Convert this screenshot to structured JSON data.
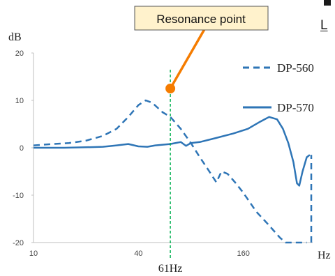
{
  "chart_data": {
    "type": "line",
    "ylabel": "dB",
    "xlabel": "Hz",
    "ylim": [
      -20,
      20
    ],
    "xlim": [
      10,
      400
    ],
    "x_scale": "log",
    "y_ticks": [
      "20",
      "10",
      "0",
      "-10",
      "-20"
    ],
    "x_ticks": [
      "10",
      "40",
      "160"
    ],
    "legend": "right",
    "series": [
      {
        "name": "DP-560",
        "style": "dashed",
        "color": "#2e75b6",
        "points": [
          [
            10,
            0.5
          ],
          [
            13,
            0.8
          ],
          [
            16,
            1.0
          ],
          [
            20,
            1.5
          ],
          [
            25,
            2.5
          ],
          [
            30,
            4.0
          ],
          [
            35,
            6.5
          ],
          [
            40,
            9.0
          ],
          [
            44,
            10.0
          ],
          [
            48,
            9.5
          ],
          [
            55,
            7.5
          ],
          [
            61,
            6.5
          ],
          [
            70,
            4.0
          ],
          [
            80,
            1.0
          ],
          [
            90,
            -2.0
          ],
          [
            100,
            -4.5
          ],
          [
            112,
            -7.3
          ],
          [
            120,
            -5.0
          ],
          [
            130,
            -5.5
          ],
          [
            145,
            -7.5
          ],
          [
            160,
            -9.5
          ],
          [
            190,
            -13.5
          ],
          [
            220,
            -16.0
          ],
          [
            260,
            -19.0
          ],
          [
            280,
            -20.0
          ],
          [
            320,
            -20.0
          ],
          [
            370,
            -20.0
          ]
        ]
      },
      {
        "name": "DP-570",
        "style": "solid",
        "color": "#2e75b6",
        "points": [
          [
            10,
            0.0
          ],
          [
            15,
            0.0
          ],
          [
            20,
            0.1
          ],
          [
            25,
            0.2
          ],
          [
            30,
            0.5
          ],
          [
            35,
            0.8
          ],
          [
            40,
            0.3
          ],
          [
            45,
            0.2
          ],
          [
            50,
            0.5
          ],
          [
            61,
            0.8
          ],
          [
            70,
            1.2
          ],
          [
            75,
            0.4
          ],
          [
            80,
            1.0
          ],
          [
            90,
            1.2
          ],
          [
            110,
            2.0
          ],
          [
            140,
            3.0
          ],
          [
            170,
            4.0
          ],
          [
            200,
            5.5
          ],
          [
            225,
            6.5
          ],
          [
            250,
            6.0
          ],
          [
            270,
            4.0
          ],
          [
            290,
            1.0
          ],
          [
            310,
            -3.0
          ],
          [
            325,
            -7.5
          ],
          [
            335,
            -8.0
          ],
          [
            350,
            -5.0
          ],
          [
            370,
            -2.0
          ],
          [
            385,
            -1.5
          ]
        ]
      }
    ],
    "markers": {
      "vline": {
        "x": 61,
        "label": "61Hz",
        "color": "#00b050"
      },
      "callout": {
        "text": "Resonance point",
        "point": [
          61,
          12.5
        ],
        "fill": "#fff2cc",
        "line_color": "#f57c00",
        "point_color": "#f57c00"
      }
    }
  },
  "cropped_text": {
    "right_edge_letter": "L"
  }
}
